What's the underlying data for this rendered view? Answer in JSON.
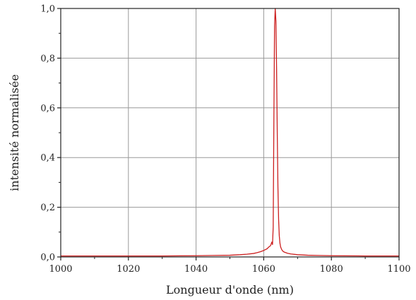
{
  "chart_data": {
    "type": "line",
    "title": "",
    "xlabel": "Longueur d'onde (nm)",
    "ylabel": "intensité normalisée",
    "xlim": [
      1000,
      1100
    ],
    "ylim": [
      0,
      1
    ],
    "x_ticks": [
      1000,
      1020,
      1040,
      1060,
      1080,
      1100
    ],
    "x_tick_labels": [
      "1000",
      "1020",
      "1040",
      "1060",
      "1080",
      "1100"
    ],
    "y_ticks": [
      0,
      0.2,
      0.4,
      0.6,
      0.8,
      1.0
    ],
    "y_tick_labels": [
      "0,0",
      "0,2",
      "0,4",
      "0,6",
      "0,8",
      "1,0"
    ],
    "grid": true,
    "legend": "none",
    "colors": {
      "series": "#cc1f1f",
      "grid": "#999999",
      "axis": "#222222"
    },
    "series": [
      {
        "x": [
          1000,
          1010,
          1020,
          1030,
          1040,
          1045,
          1050,
          1053,
          1055,
          1057,
          1058,
          1059,
          1060,
          1061,
          1061.5,
          1062,
          1062.4,
          1062.6,
          1062.8,
          1063.0,
          1063.2,
          1063.4,
          1063.6,
          1063.8,
          1064.0,
          1064.2,
          1064.4,
          1064.6,
          1064.8,
          1065.0,
          1065.3,
          1065.6,
          1066,
          1067,
          1068,
          1070,
          1073,
          1076,
          1080,
          1090,
          1100
        ],
        "y": [
          0.004,
          0.004,
          0.004,
          0.004,
          0.005,
          0.006,
          0.007,
          0.009,
          0.011,
          0.014,
          0.017,
          0.021,
          0.026,
          0.033,
          0.04,
          0.045,
          0.06,
          0.05,
          0.12,
          0.55,
          0.93,
          1.0,
          0.95,
          0.76,
          0.5,
          0.28,
          0.15,
          0.085,
          0.055,
          0.04,
          0.03,
          0.024,
          0.02,
          0.015,
          0.012,
          0.009,
          0.007,
          0.006,
          0.005,
          0.004,
          0.004
        ]
      }
    ]
  }
}
